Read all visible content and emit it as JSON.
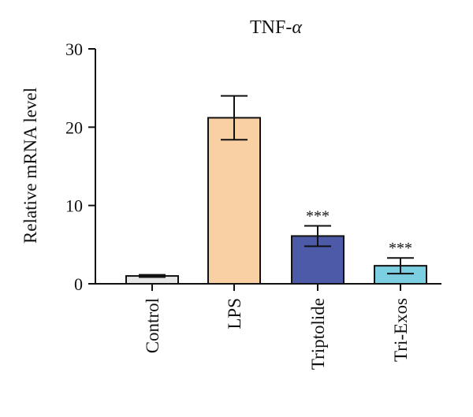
{
  "chart_data": {
    "type": "bar",
    "title": "TNF-",
    "title_symbol": "α",
    "xlabel": "",
    "ylabel": "Relative mRNA level",
    "ylim": [
      0,
      30
    ],
    "yticks": [
      "0",
      "10",
      "20",
      "30"
    ],
    "categories": [
      "Control",
      "LPS",
      "Triptolide",
      "Tri-Exos"
    ],
    "values": [
      1.0,
      21.2,
      6.1,
      2.3
    ],
    "errors": [
      0.15,
      2.8,
      1.3,
      1.0
    ],
    "significance": [
      "",
      "",
      "***",
      "***"
    ],
    "colors": [
      "#e6e6e6",
      "#f9d0a3",
      "#4c5aa8",
      "#7ccfe0"
    ],
    "grid": false,
    "legend": "none"
  }
}
